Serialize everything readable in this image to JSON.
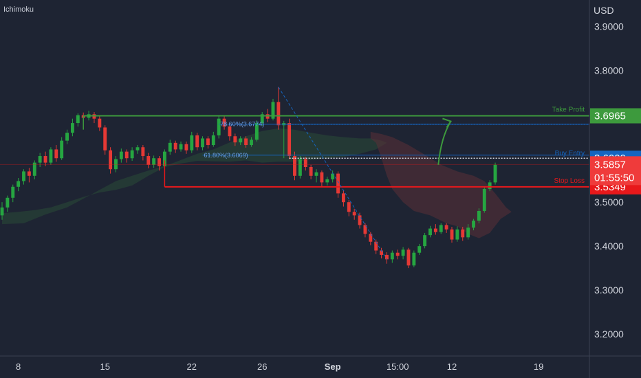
{
  "indicator_label": "Ichimoku",
  "currency_label": "USD",
  "colors": {
    "background": "#1e2433",
    "up": "#26a641",
    "down": "#e53935",
    "take_profit": "#3d9a3d",
    "stop_loss": "#e8181b",
    "entry": "#1565c0",
    "cloud_green": "#2a4a36",
    "cloud_red": "#5b2f37"
  },
  "chart_data": {
    "type": "candlestick",
    "xlabel": "",
    "ylabel": "",
    "ylim": [
      3.15,
      3.96
    ],
    "x_range": [
      0,
      108
    ],
    "y_ticks": [
      "3.9000",
      "3.8000",
      "3.5000",
      "3.4000",
      "3.3000",
      "3.2000"
    ],
    "x_ticks": [
      {
        "label": "8",
        "x": 3,
        "bold": false
      },
      {
        "label": "15",
        "x": 19,
        "bold": false
      },
      {
        "label": "22",
        "x": 35,
        "bold": false
      },
      {
        "label": "26",
        "x": 48,
        "bold": false
      },
      {
        "label": "Sep",
        "x": 61,
        "bold": true
      },
      {
        "label": "15:00",
        "x": 73,
        "bold": false
      },
      {
        "label": "12",
        "x": 83,
        "bold": false
      },
      {
        "label": "19",
        "x": 99,
        "bold": false
      }
    ],
    "levels": {
      "take_profit": {
        "label": "Take Profit",
        "price_label": "3.6965",
        "value": 3.6965,
        "x_start": 15
      },
      "buy_entry": {
        "label": "Buy Entry",
        "price_label": "3.6000",
        "value": 3.6
      },
      "stop_loss": {
        "label": "Stop Loss",
        "price_label": "3.5349",
        "value": 3.5349,
        "x_start": 30
      },
      "current_price": {
        "price_label": "3.5857",
        "countdown": "01:55:50",
        "value": 3.5857
      }
    },
    "fibonacci": [
      {
        "label": "78.60%(3.6774)",
        "value": 3.6774,
        "x_start": 40
      },
      {
        "label": "61.80%(3.6069)",
        "value": 3.6069,
        "x_start": 37
      }
    ],
    "projection_arrow": {
      "from": [
        80.5,
        3.585
      ],
      "to": [
        82.8,
        3.684
      ]
    },
    "cloud_green": [
      [
        0,
        3.45
      ],
      [
        4,
        3.452
      ],
      [
        8,
        3.472
      ],
      [
        12,
        3.488
      ],
      [
        15,
        3.508
      ],
      [
        18,
        3.528
      ],
      [
        21,
        3.548
      ],
      [
        24,
        3.56
      ],
      [
        27,
        3.572
      ],
      [
        30,
        3.582
      ],
      [
        33,
        3.596
      ],
      [
        36,
        3.61
      ],
      [
        39,
        3.62
      ],
      [
        42,
        3.636
      ],
      [
        45,
        3.65
      ],
      [
        48,
        3.662
      ],
      [
        51,
        3.668
      ],
      [
        54,
        3.665
      ],
      [
        57,
        3.658
      ],
      [
        60,
        3.652
      ],
      [
        63,
        3.648
      ],
      [
        66,
        3.645
      ],
      [
        68,
        3.645
      ],
      [
        70,
        3.64
      ],
      [
        71,
        3.635
      ],
      [
        69,
        3.62
      ],
      [
        66,
        3.61
      ],
      [
        63,
        3.603
      ],
      [
        60,
        3.6
      ],
      [
        57,
        3.596
      ],
      [
        54,
        3.592
      ],
      [
        51,
        3.592
      ],
      [
        48,
        3.59
      ],
      [
        45,
        3.595
      ],
      [
        42,
        3.592
      ],
      [
        39,
        3.593
      ],
      [
        36,
        3.594
      ],
      [
        33,
        3.588
      ],
      [
        30,
        3.58
      ],
      [
        27,
        3.56
      ],
      [
        24,
        3.538
      ],
      [
        21,
        3.528
      ],
      [
        18,
        3.522
      ],
      [
        15,
        3.512
      ],
      [
        12,
        3.5
      ],
      [
        9,
        3.488
      ],
      [
        6,
        3.482
      ],
      [
        3,
        3.478
      ],
      [
        0,
        3.475
      ]
    ],
    "cloud_red": [
      [
        68,
        3.66
      ],
      [
        70,
        3.655
      ],
      [
        72,
        3.648
      ],
      [
        75,
        3.63
      ],
      [
        78,
        3.608
      ],
      [
        81,
        3.585
      ],
      [
        84,
        3.57
      ],
      [
        87,
        3.56
      ],
      [
        89,
        3.548
      ],
      [
        91,
        3.52
      ],
      [
        93,
        3.488
      ],
      [
        94,
        3.478
      ],
      [
        92,
        3.462
      ],
      [
        90,
        3.43
      ],
      [
        88,
        3.418
      ],
      [
        86,
        3.428
      ],
      [
        84,
        3.445
      ],
      [
        82,
        3.452
      ],
      [
        79,
        3.47
      ],
      [
        76,
        3.48
      ],
      [
        74,
        3.5
      ],
      [
        72,
        3.53
      ],
      [
        71,
        3.56
      ],
      [
        70,
        3.6
      ],
      [
        69,
        3.635
      ],
      [
        68,
        3.645
      ]
    ],
    "candles": [
      [
        0,
        3.47,
        3.488,
        3.46,
        3.5
      ],
      [
        1,
        3.488,
        3.51,
        3.478,
        3.515
      ],
      [
        2,
        3.51,
        3.535,
        3.5,
        3.54
      ],
      [
        3,
        3.535,
        3.548,
        3.525,
        3.555
      ],
      [
        4,
        3.548,
        3.57,
        3.54,
        3.575
      ],
      [
        5,
        3.57,
        3.56,
        3.545,
        3.578
      ],
      [
        6,
        3.56,
        3.59,
        3.552,
        3.595
      ],
      [
        7,
        3.59,
        3.605,
        3.58,
        3.612
      ],
      [
        8,
        3.605,
        3.59,
        3.582,
        3.615
      ],
      [
        9,
        3.59,
        3.62,
        3.585,
        3.625
      ],
      [
        10,
        3.62,
        3.6,
        3.592,
        3.63
      ],
      [
        11,
        3.6,
        3.64,
        3.596,
        3.648
      ],
      [
        12,
        3.64,
        3.658,
        3.632,
        3.665
      ],
      [
        13,
        3.658,
        3.68,
        3.65,
        3.69
      ],
      [
        14,
        3.68,
        3.698,
        3.672,
        3.702
      ],
      [
        15,
        3.698,
        3.692,
        3.684,
        3.704
      ],
      [
        16,
        3.692,
        3.7,
        3.686,
        3.708
      ],
      [
        17,
        3.7,
        3.69,
        3.68,
        3.705
      ],
      [
        18,
        3.69,
        3.67,
        3.662,
        3.698
      ],
      [
        19,
        3.67,
        3.618,
        3.608,
        3.675
      ],
      [
        20,
        3.618,
        3.575,
        3.565,
        3.625
      ],
      [
        21,
        3.575,
        3.598,
        3.568,
        3.605
      ],
      [
        22,
        3.598,
        3.615,
        3.59,
        3.622
      ],
      [
        23,
        3.615,
        3.6,
        3.59,
        3.62
      ],
      [
        24,
        3.6,
        3.618,
        3.594,
        3.625
      ],
      [
        25,
        3.618,
        3.625,
        3.61,
        3.63
      ],
      [
        26,
        3.625,
        3.605,
        3.595,
        3.63
      ],
      [
        27,
        3.605,
        3.585,
        3.577,
        3.612
      ],
      [
        28,
        3.585,
        3.6,
        3.578,
        3.606
      ],
      [
        29,
        3.6,
        3.582,
        3.572,
        3.605
      ],
      [
        30,
        3.582,
        3.615,
        3.578,
        3.62
      ],
      [
        31,
        3.615,
        3.635,
        3.608,
        3.642
      ],
      [
        32,
        3.635,
        3.62,
        3.612,
        3.64
      ],
      [
        33,
        3.62,
        3.632,
        3.615,
        3.638
      ],
      [
        34,
        3.632,
        3.618,
        3.61,
        3.638
      ],
      [
        35,
        3.618,
        3.652,
        3.612,
        3.66
      ],
      [
        36,
        3.652,
        3.625,
        3.618,
        3.658
      ],
      [
        37,
        3.625,
        3.645,
        3.618,
        3.65
      ],
      [
        38,
        3.645,
        3.63,
        3.622,
        3.65
      ],
      [
        39,
        3.63,
        3.652,
        3.626,
        3.66
      ],
      [
        40,
        3.652,
        3.69,
        3.645,
        3.695
      ],
      [
        41,
        3.69,
        3.672,
        3.665,
        3.695
      ],
      [
        42,
        3.672,
        3.65,
        3.64,
        3.678
      ],
      [
        43,
        3.65,
        3.636,
        3.628,
        3.656
      ],
      [
        44,
        3.636,
        3.645,
        3.63,
        3.65
      ],
      [
        45,
        3.645,
        3.63,
        3.624,
        3.65
      ],
      [
        46,
        3.63,
        3.642,
        3.626,
        3.648
      ],
      [
        47,
        3.642,
        3.68,
        3.638,
        3.686
      ],
      [
        48,
        3.68,
        3.7,
        3.674,
        3.705
      ],
      [
        49,
        3.7,
        3.69,
        3.682,
        3.712
      ],
      [
        50,
        3.69,
        3.728,
        3.686,
        3.735
      ],
      [
        51,
        3.728,
        3.675,
        3.665,
        3.762
      ],
      [
        52,
        3.675,
        3.68,
        3.6,
        3.685
      ],
      [
        53,
        3.68,
        3.605,
        3.598,
        3.69
      ],
      [
        54,
        3.605,
        3.56,
        3.55,
        3.615
      ],
      [
        55,
        3.56,
        3.598,
        3.554,
        3.605
      ],
      [
        56,
        3.598,
        3.58,
        3.572,
        3.603
      ],
      [
        57,
        3.58,
        3.56,
        3.552,
        3.585
      ],
      [
        58,
        3.56,
        3.568,
        3.545,
        3.575
      ],
      [
        59,
        3.568,
        3.545,
        3.535,
        3.572
      ],
      [
        60,
        3.545,
        3.552,
        3.538,
        3.558
      ],
      [
        61,
        3.552,
        3.565,
        3.545,
        3.572
      ],
      [
        62,
        3.565,
        3.52,
        3.51,
        3.57
      ],
      [
        63,
        3.52,
        3.5,
        3.49,
        3.528
      ],
      [
        64,
        3.5,
        3.478,
        3.468,
        3.505
      ],
      [
        65,
        3.478,
        3.47,
        3.46,
        3.485
      ],
      [
        66,
        3.47,
        3.448,
        3.44,
        3.476
      ],
      [
        67,
        3.448,
        3.428,
        3.42,
        3.452
      ],
      [
        68,
        3.428,
        3.41,
        3.402,
        3.432
      ],
      [
        69,
        3.41,
        3.39,
        3.382,
        3.415
      ],
      [
        70,
        3.39,
        3.38,
        3.372,
        3.396
      ],
      [
        71,
        3.38,
        3.37,
        3.36,
        3.386
      ],
      [
        72,
        3.37,
        3.385,
        3.362,
        3.39
      ],
      [
        73,
        3.385,
        3.378,
        3.37,
        3.392
      ],
      [
        74,
        3.378,
        3.392,
        3.37,
        3.398
      ],
      [
        75,
        3.392,
        3.356,
        3.35,
        3.396
      ],
      [
        76,
        3.356,
        3.385,
        3.352,
        3.39
      ],
      [
        77,
        3.385,
        3.4,
        3.38,
        3.405
      ],
      [
        78,
        3.4,
        3.425,
        3.395,
        3.43
      ],
      [
        79,
        3.425,
        3.44,
        3.42,
        3.446
      ],
      [
        80,
        3.44,
        3.432,
        3.426,
        3.45
      ],
      [
        81,
        3.432,
        3.448,
        3.428,
        3.452
      ],
      [
        82,
        3.448,
        3.438,
        3.43,
        3.452
      ],
      [
        83,
        3.438,
        3.415,
        3.408,
        3.444
      ],
      [
        84,
        3.415,
        3.438,
        3.41,
        3.445
      ],
      [
        85,
        3.438,
        3.42,
        3.412,
        3.444
      ],
      [
        86,
        3.42,
        3.442,
        3.415,
        3.45
      ],
      [
        87,
        3.442,
        3.458,
        3.436,
        3.462
      ],
      [
        88,
        3.458,
        3.48,
        3.452,
        3.486
      ],
      [
        89,
        3.48,
        3.53,
        3.476,
        3.535
      ],
      [
        90,
        3.53,
        3.545,
        3.525,
        3.55
      ],
      [
        91,
        3.545,
        3.585,
        3.54,
        3.59
      ]
    ]
  }
}
